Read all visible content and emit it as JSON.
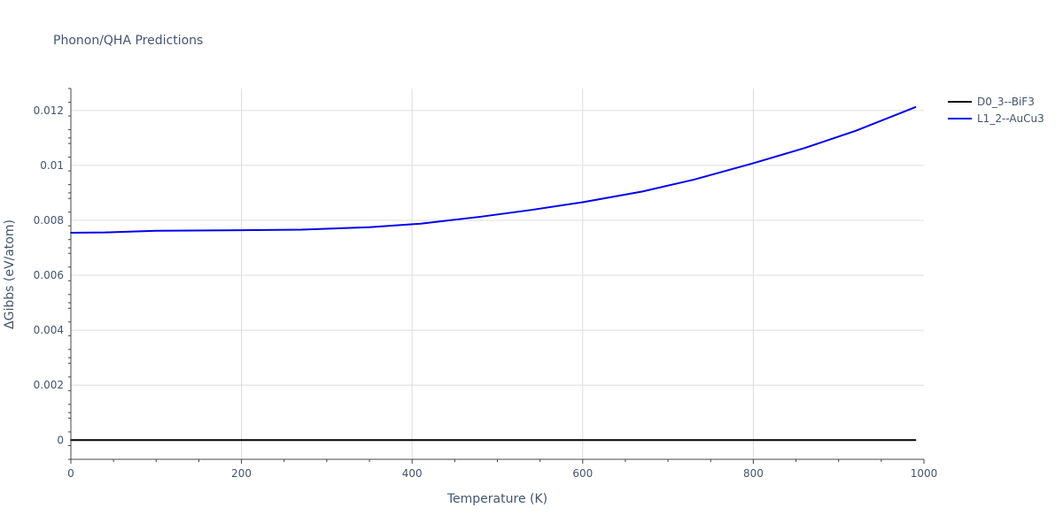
{
  "chart_data": {
    "type": "line",
    "title": "Phonon/QHA Predictions",
    "xlabel": "Temperature (K)",
    "ylabel": "ΔGibbs (eV/atom)",
    "xlim": [
      0,
      1000
    ],
    "ylim": [
      -0.0007,
      0.0128
    ],
    "xticks": [
      0,
      200,
      400,
      600,
      800,
      1000
    ],
    "xtick_labels": [
      "0",
      "200",
      "400",
      "600",
      "800",
      "1000"
    ],
    "yticks": [
      0,
      0.002,
      0.004,
      0.006,
      0.008,
      0.01,
      0.012
    ],
    "ytick_labels": [
      "0",
      "0.002",
      "0.004",
      "0.006",
      "0.008",
      "0.01",
      "0.012"
    ],
    "grid": true,
    "legend_position": "top-right",
    "series": [
      {
        "name": "D0_3--BiF3",
        "color": "#000000",
        "x": [
          0,
          990
        ],
        "y": [
          0,
          0
        ]
      },
      {
        "name": "L1_2--AuCu3",
        "color": "#0000ee",
        "x": [
          0,
          40,
          100,
          200,
          270,
          350,
          410,
          480,
          540,
          600,
          670,
          730,
          800,
          860,
          920,
          990
        ],
        "y": [
          0.00755,
          0.00756,
          0.00762,
          0.00764,
          0.00766,
          0.00775,
          0.00788,
          0.00813,
          0.00838,
          0.00866,
          0.00905,
          0.00948,
          0.01008,
          0.01063,
          0.01126,
          0.01212
        ]
      }
    ]
  }
}
